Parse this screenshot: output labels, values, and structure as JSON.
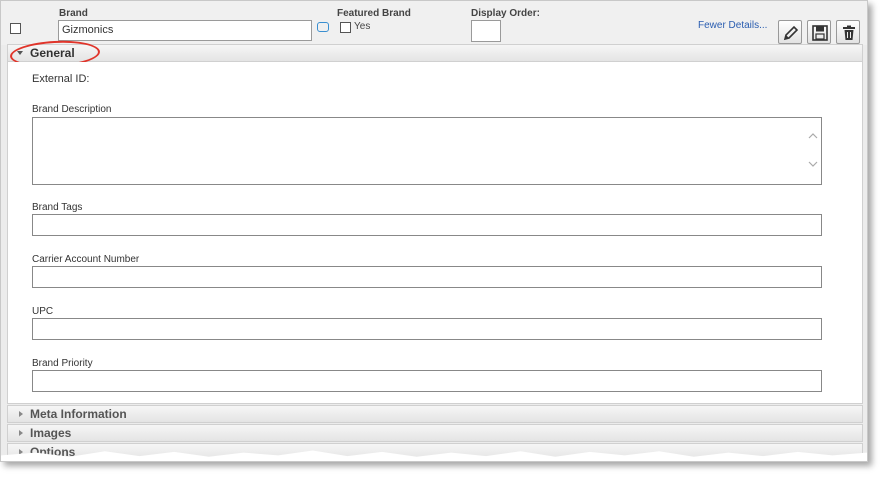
{
  "header": {
    "brand_label": "Brand",
    "brand_value": "Gizmonics",
    "featured_label": "Featured Brand",
    "featured_yes": "Yes",
    "display_order_label": "Display Order:",
    "fewer_details": "Fewer Details..."
  },
  "general": {
    "title": "General",
    "external_id_label": "External ID:",
    "brand_description_label": "Brand Description",
    "brand_tags_label": "Brand Tags",
    "carrier_account_label": "Carrier Account Number",
    "upc_label": "UPC",
    "brand_priority_label": "Brand Priority"
  },
  "sections": {
    "meta": "Meta Information",
    "images": "Images",
    "options": "Options"
  },
  "icons": {
    "edit": "pencil-icon",
    "save": "floppy-disk-icon",
    "delete": "trash-icon",
    "comment": "chat-bubble-icon"
  },
  "colors": {
    "link": "#2a5db0",
    "highlight_ring": "#e0342a",
    "comment_icon": "#3a8fd0"
  }
}
